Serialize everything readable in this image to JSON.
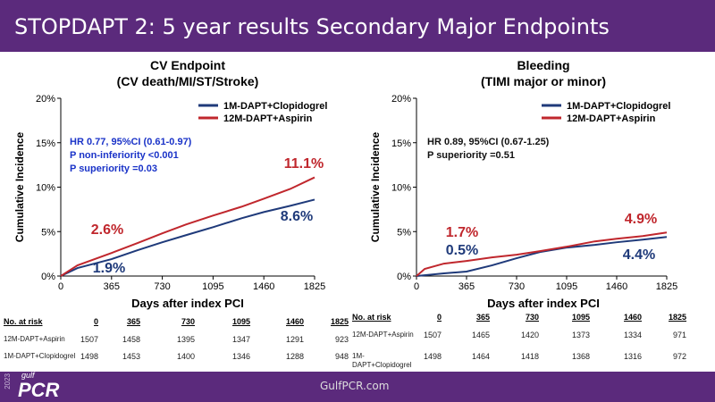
{
  "title": "STOPDAPT 2: 5 year results Secondary Major Endpoints",
  "footer": {
    "url": "GulfPCR.com",
    "logo": "PCR",
    "logo_year": "2023",
    "logo_sub": "gulf"
  },
  "colors": {
    "blue": "#1f3a7a",
    "red": "#c0272d",
    "purple": "#5b2a7c"
  },
  "chart_data": [
    {
      "type": "line",
      "title": "CV Endpoint",
      "subtitle": "(CV death/MI/ST/Stroke)",
      "xlabel": "Days after index PCI",
      "ylabel": "Cumulative Incidence",
      "xticks": [
        "0",
        "365",
        "730",
        "1095",
        "1460",
        "1825"
      ],
      "yticks": [
        "0%",
        "5%",
        "10%",
        "15%",
        "20%"
      ],
      "xlim": [
        0,
        1825
      ],
      "ylim": [
        0,
        20
      ],
      "legend": [
        "1M-DAPT+Clopidogrel",
        "12M-DAPT+Aspirin"
      ],
      "legend_position": "top-right",
      "stats": [
        "HR 0.77, 95%CI (0.61-0.97)",
        "P non-inferiority <0.001",
        "P superiority =0.03"
      ],
      "series": [
        {
          "name": "1M-DAPT+Clopidogrel",
          "points": [
            [
              0,
              0
            ],
            [
              120,
              0.9
            ],
            [
              365,
              1.9
            ],
            [
              550,
              2.9
            ],
            [
              730,
              3.8
            ],
            [
              900,
              4.6
            ],
            [
              1095,
              5.5
            ],
            [
              1300,
              6.5
            ],
            [
              1460,
              7.2
            ],
            [
              1650,
              7.9
            ],
            [
              1825,
              8.6
            ]
          ]
        },
        {
          "name": "12M-DAPT+Aspirin",
          "points": [
            [
              0,
              0
            ],
            [
              120,
              1.2
            ],
            [
              365,
              2.6
            ],
            [
              550,
              3.7
            ],
            [
              730,
              4.8
            ],
            [
              900,
              5.8
            ],
            [
              1095,
              6.8
            ],
            [
              1300,
              7.8
            ],
            [
              1460,
              8.7
            ],
            [
              1650,
              9.8
            ],
            [
              1825,
              11.1
            ]
          ]
        }
      ],
      "annotations": {
        "red_365": "2.6%",
        "blue_365": "1.9%",
        "red_1825": "11.1%",
        "blue_1825": "8.6%"
      },
      "risk_table": {
        "header": "No. at risk",
        "cols": [
          "0",
          "365",
          "730",
          "1095",
          "1460",
          "1825"
        ],
        "rows": [
          {
            "label": "12M-DAPT+Aspirin",
            "values": [
              "1507",
              "1458",
              "1395",
              "1347",
              "1291",
              "923"
            ]
          },
          {
            "label": "1M-DAPT+Clopidogrel",
            "values": [
              "1498",
              "1453",
              "1400",
              "1346",
              "1288",
              "948"
            ]
          }
        ]
      }
    },
    {
      "type": "line",
      "title": "Bleeding",
      "subtitle": "(TIMI major or minor)",
      "xlabel": "Days after index PCI",
      "ylabel": "Cumulative Incidence",
      "xticks": [
        "0",
        "365",
        "730",
        "1095",
        "1460",
        "1825"
      ],
      "yticks": [
        "0%",
        "5%",
        "10%",
        "15%",
        "20%"
      ],
      "xlim": [
        0,
        1825
      ],
      "ylim": [
        0,
        20
      ],
      "legend": [
        "1M-DAPT+Clopidogrel",
        "12M-DAPT+Aspirin"
      ],
      "legend_position": "top-right",
      "stats": [
        "HR 0.89, 95%CI (0.67-1.25)",
        "P superiority =0.51"
      ],
      "series": [
        {
          "name": "1M-DAPT+Clopidogrel",
          "points": [
            [
              0,
              0
            ],
            [
              200,
              0.3
            ],
            [
              365,
              0.5
            ],
            [
              550,
              1.2
            ],
            [
              730,
              2.0
            ],
            [
              900,
              2.7
            ],
            [
              1095,
              3.2
            ],
            [
              1300,
              3.5
            ],
            [
              1460,
              3.8
            ],
            [
              1650,
              4.1
            ],
            [
              1825,
              4.4
            ]
          ]
        },
        {
          "name": "12M-DAPT+Aspirin",
          "points": [
            [
              0,
              0
            ],
            [
              60,
              0.8
            ],
            [
              200,
              1.4
            ],
            [
              365,
              1.7
            ],
            [
              550,
              2.1
            ],
            [
              730,
              2.4
            ],
            [
              900,
              2.8
            ],
            [
              1095,
              3.3
            ],
            [
              1300,
              3.9
            ],
            [
              1460,
              4.2
            ],
            [
              1650,
              4.5
            ],
            [
              1825,
              4.9
            ]
          ]
        }
      ],
      "annotations": {
        "red_365": "1.7%",
        "blue_365": "0.5%",
        "red_1825": "4.9%",
        "blue_1825": "4.4%"
      },
      "risk_table": {
        "header": "No. at risk",
        "cols": [
          "0",
          "365",
          "730",
          "1095",
          "1460",
          "1825"
        ],
        "rows": [
          {
            "label": "12M-DAPT+Aspirin",
            "values": [
              "1507",
              "1465",
              "1420",
              "1373",
              "1334",
              "971"
            ]
          },
          {
            "label": "1M-DAPT+Clopidogrel",
            "values": [
              "1498",
              "1464",
              "1418",
              "1368",
              "1316",
              "972"
            ]
          }
        ]
      }
    }
  ]
}
